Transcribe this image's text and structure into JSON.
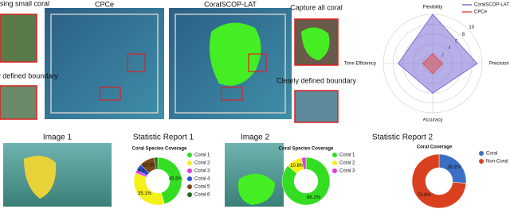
{
  "figure": {
    "labels": {
      "cpce": "CPCe",
      "coralscop": "CoralSCOP-LAT",
      "missing": "Missing small coral",
      "poorly": "Poorly defined boundary",
      "capture": "Capture all coral",
      "clearly": "Clearly defined boundary",
      "image1": "Image 1",
      "image2": "Image 2",
      "report1": "Statistic Report 1",
      "report2": "Statistic Report 2"
    }
  },
  "chart_data": [
    {
      "type": "radar",
      "categories": [
        "Flexibility",
        "Precision",
        "Accuracy",
        "Time Efficiency"
      ],
      "ylim": [
        0,
        10
      ],
      "yticks": [
        2,
        4,
        6,
        8,
        10
      ],
      "series": [
        {
          "name": "CoralSCOP-LAT",
          "color": "#7b6fd6",
          "values": [
            10,
            9,
            6,
            7
          ]
        },
        {
          "name": "CPCe",
          "color": "#d9534f",
          "values": [
            2,
            2,
            2,
            2
          ]
        }
      ]
    },
    {
      "type": "donut",
      "title": "Coral Species Coverage",
      "categories": [
        "Coral 1",
        "Coral 2",
        "Coral 3",
        "Coral 4",
        "Coral 5",
        "Coral 6"
      ],
      "colors": [
        "#33dd22",
        "#f5f019",
        "#e03ce0",
        "#2e4ad8",
        "#7a4a1a",
        "#1f6b1f"
      ],
      "values": [
        45.5,
        35.1,
        2.0,
        4.5,
        10.5,
        2.4
      ],
      "value_labels": [
        "45.5%",
        "35.1%",
        null,
        "4.5%",
        "10.5%",
        null
      ]
    },
    {
      "type": "donut",
      "title": "Coral Species Coverage",
      "categories": [
        "Coral 1",
        "Coral 2",
        "Coral 3"
      ],
      "colors": [
        "#33dd22",
        "#f5f019",
        "#e03ce0"
      ],
      "values": [
        86.2,
        10.8,
        3.0
      ],
      "value_labels": [
        "86.2%",
        "10.8%",
        null
      ]
    },
    {
      "type": "donut",
      "title": "Coral Coverage",
      "categories": [
        "Coral",
        "Non-Coral"
      ],
      "colors": [
        "#3a6fc4",
        "#d9401f"
      ],
      "values": [
        26.2,
        73.8
      ],
      "value_labels": [
        "26.2%",
        "73.8%"
      ]
    }
  ]
}
